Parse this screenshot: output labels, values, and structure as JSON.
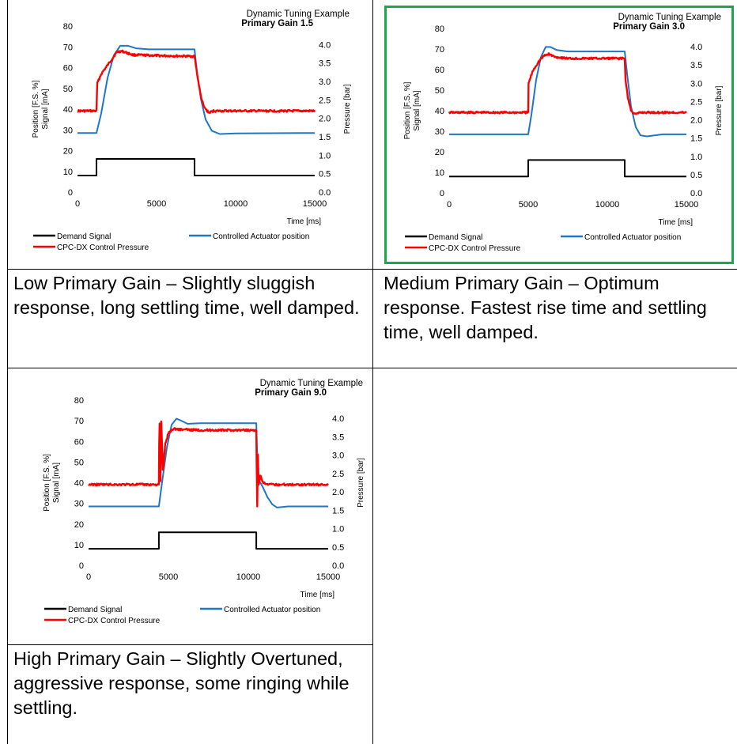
{
  "colors": {
    "demand": "#000000",
    "position": "#1f77c4",
    "pressure": "#ff0000",
    "highlight": "#1aa84a"
  },
  "chart_data": [
    {
      "type": "line",
      "title": "Dynamic Tuning Example",
      "subtitle": "Primary Gain 1.5",
      "xlabel": "Time [ms]",
      "ylabel": "Position [F.S. %] Signal [mA]",
      "y2label": "Pressure [bar]",
      "xlim": [
        0,
        15000
      ],
      "ylim": [
        0,
        80
      ],
      "y2lim": [
        0,
        4.5
      ],
      "x_ticks": [
        "0",
        "5000",
        "10000",
        "15000"
      ],
      "y_ticks": [
        "0",
        "10",
        "20",
        "30",
        "40",
        "50",
        "60",
        "70",
        "80"
      ],
      "y2_ticks": [
        "0.0",
        "0.5",
        "1.0",
        "1.5",
        "2.0",
        "2.5",
        "3.0",
        "3.5",
        "4.0"
      ],
      "legend": [
        "Demand Signal",
        "Controlled Actuator position",
        "CPC-DX Control Pressure"
      ],
      "legend_position": "bottom",
      "highlighted": false,
      "series": [
        {
          "name": "Demand Signal",
          "axis": "y",
          "color": "#000000",
          "x": [
            0,
            1200,
            1200,
            7400,
            7400,
            15000
          ],
          "y": [
            8,
            8,
            16,
            16,
            8,
            8
          ]
        },
        {
          "name": "Controlled Actuator position",
          "axis": "y",
          "color": "#1f77c4",
          "x": [
            0,
            1200,
            1500,
            1900,
            2300,
            2700,
            3200,
            3700,
            4500,
            7400,
            7550,
            7800,
            8100,
            8500,
            9000,
            10000,
            15000
          ],
          "y": [
            28.5,
            28.5,
            38,
            55,
            66,
            70.5,
            70.5,
            69.3,
            68.8,
            68.8,
            58,
            45,
            35,
            29.5,
            28,
            28.3,
            28.5
          ]
        },
        {
          "name": "CPC-DX Control Pressure",
          "axis": "y2",
          "color": "#ff0000",
          "x": [
            0,
            1200,
            1250,
            1500,
            2000,
            2500,
            2800,
            3500,
            5000,
            7400,
            7600,
            7800,
            8000,
            8300,
            8600,
            15000
          ],
          "y": [
            2.2,
            2.2,
            2.95,
            3.2,
            3.5,
            3.8,
            3.82,
            3.72,
            3.7,
            3.68,
            3.1,
            2.6,
            2.3,
            2.15,
            2.2,
            2.2
          ]
        }
      ]
    },
    {
      "type": "line",
      "title": "Dynamic Tuning Example",
      "subtitle": "Primary Gain 3.0",
      "xlabel": "Time [ms]",
      "ylabel": "Position [F.S. %] Signal [mA]",
      "y2label": "Pressure [bar]",
      "xlim": [
        0,
        15000
      ],
      "ylim": [
        0,
        80
      ],
      "y2lim": [
        0,
        4.5
      ],
      "x_ticks": [
        "0",
        "5000",
        "10000",
        "15000"
      ],
      "y_ticks": [
        "0",
        "10",
        "20",
        "30",
        "40",
        "50",
        "60",
        "70",
        "80"
      ],
      "y2_ticks": [
        "0.0",
        "0.5",
        "1.0",
        "1.5",
        "2.0",
        "2.5",
        "3.0",
        "3.5",
        "4.0"
      ],
      "legend": [
        "Demand Signal",
        "Controlled Actuator position",
        "CPC-DX Control Pressure"
      ],
      "legend_position": "bottom",
      "highlighted": true,
      "series": [
        {
          "name": "Demand Signal",
          "axis": "y",
          "color": "#000000",
          "x": [
            0,
            5000,
            5000,
            11100,
            11100,
            15000
          ],
          "y": [
            8,
            8,
            16,
            16,
            8,
            8
          ]
        },
        {
          "name": "Controlled Actuator position",
          "axis": "y",
          "color": "#1f77c4",
          "x": [
            0,
            5000,
            5200,
            5500,
            5800,
            6100,
            6400,
            6800,
            7500,
            11100,
            11250,
            11500,
            11800,
            12100,
            12500,
            13500,
            15000
          ],
          "y": [
            28.5,
            28.5,
            38,
            55,
            66,
            71,
            71,
            69.5,
            68.8,
            68.8,
            58,
            42,
            32,
            28,
            27.5,
            28.5,
            28.5
          ]
        },
        {
          "name": "CPC-DX Control Pressure",
          "axis": "y2",
          "color": "#ff0000",
          "x": [
            0,
            5000,
            5020,
            5300,
            5700,
            6000,
            6300,
            6700,
            7500,
            11100,
            11150,
            11300,
            11500,
            11800,
            12100,
            15000
          ],
          "y": [
            2.2,
            2.2,
            3.0,
            3.35,
            3.62,
            3.75,
            3.8,
            3.72,
            3.68,
            3.68,
            3.1,
            2.6,
            2.25,
            2.15,
            2.2,
            2.2
          ]
        }
      ]
    },
    {
      "type": "line",
      "title": "Dynamic Tuning Example",
      "subtitle": "Primary Gain 9.0",
      "xlabel": "Time [ms]",
      "ylabel": "Position [F.S. %] Signal [mA]",
      "y2label": "Pressure [bar]",
      "xlim": [
        0,
        15000
      ],
      "ylim": [
        0,
        80
      ],
      "y2lim": [
        0,
        4.5
      ],
      "x_ticks": [
        "0",
        "5000",
        "10000",
        "15000"
      ],
      "y_ticks": [
        "0",
        "10",
        "20",
        "30",
        "40",
        "50",
        "60",
        "70",
        "80"
      ],
      "y2_ticks": [
        "0.0",
        "0.5",
        "1.0",
        "1.5",
        "2.0",
        "2.5",
        "3.0",
        "3.5",
        "4.0"
      ],
      "legend": [
        "Demand Signal",
        "Controlled Actuator position",
        "CPC-DX Control Pressure"
      ],
      "legend_position": "bottom",
      "highlighted": false,
      "series": [
        {
          "name": "Demand Signal",
          "axis": "y",
          "color": "#000000",
          "x": [
            0,
            4400,
            4400,
            10500,
            10500,
            15000
          ],
          "y": [
            8,
            8,
            16,
            16,
            8,
            8
          ]
        },
        {
          "name": "Controlled Actuator position",
          "axis": "y",
          "color": "#1f77c4",
          "x": [
            0,
            4400,
            4600,
            4900,
            5200,
            5500,
            5800,
            6200,
            7000,
            10500,
            10600,
            10900,
            11200,
            11500,
            11800,
            12500,
            15000
          ],
          "y": [
            28.5,
            28.5,
            40,
            57,
            68,
            71,
            70,
            68.5,
            68.8,
            68.8,
            42,
            38,
            33,
            29.5,
            28,
            28.5,
            28.5
          ]
        },
        {
          "name": "CPC-DX Control Pressure",
          "axis": "y2",
          "color": "#ff0000",
          "x": [
            0,
            4400,
            4420,
            4450,
            4500,
            4550,
            4650,
            4800,
            5000,
            5300,
            5800,
            7000,
            10500,
            10520,
            10560,
            10600,
            10650,
            10750,
            10900,
            11200,
            15000
          ],
          "y": [
            2.2,
            2.2,
            3.3,
            3.85,
            2.3,
            3.9,
            2.6,
            3.3,
            3.6,
            3.72,
            3.7,
            3.68,
            3.68,
            2.8,
            1.6,
            3.0,
            2.2,
            2.45,
            2.25,
            2.2,
            2.2
          ]
        }
      ]
    }
  ],
  "captions": [
    "Low Primary Gain – Slightly sluggish response, long settling time, well damped.",
    "Medium Primary Gain – Optimum response. Fastest rise time and settling time, well damped.",
    "High Primary Gain – Slightly Overtuned, aggressive response, some ringing while settling."
  ]
}
